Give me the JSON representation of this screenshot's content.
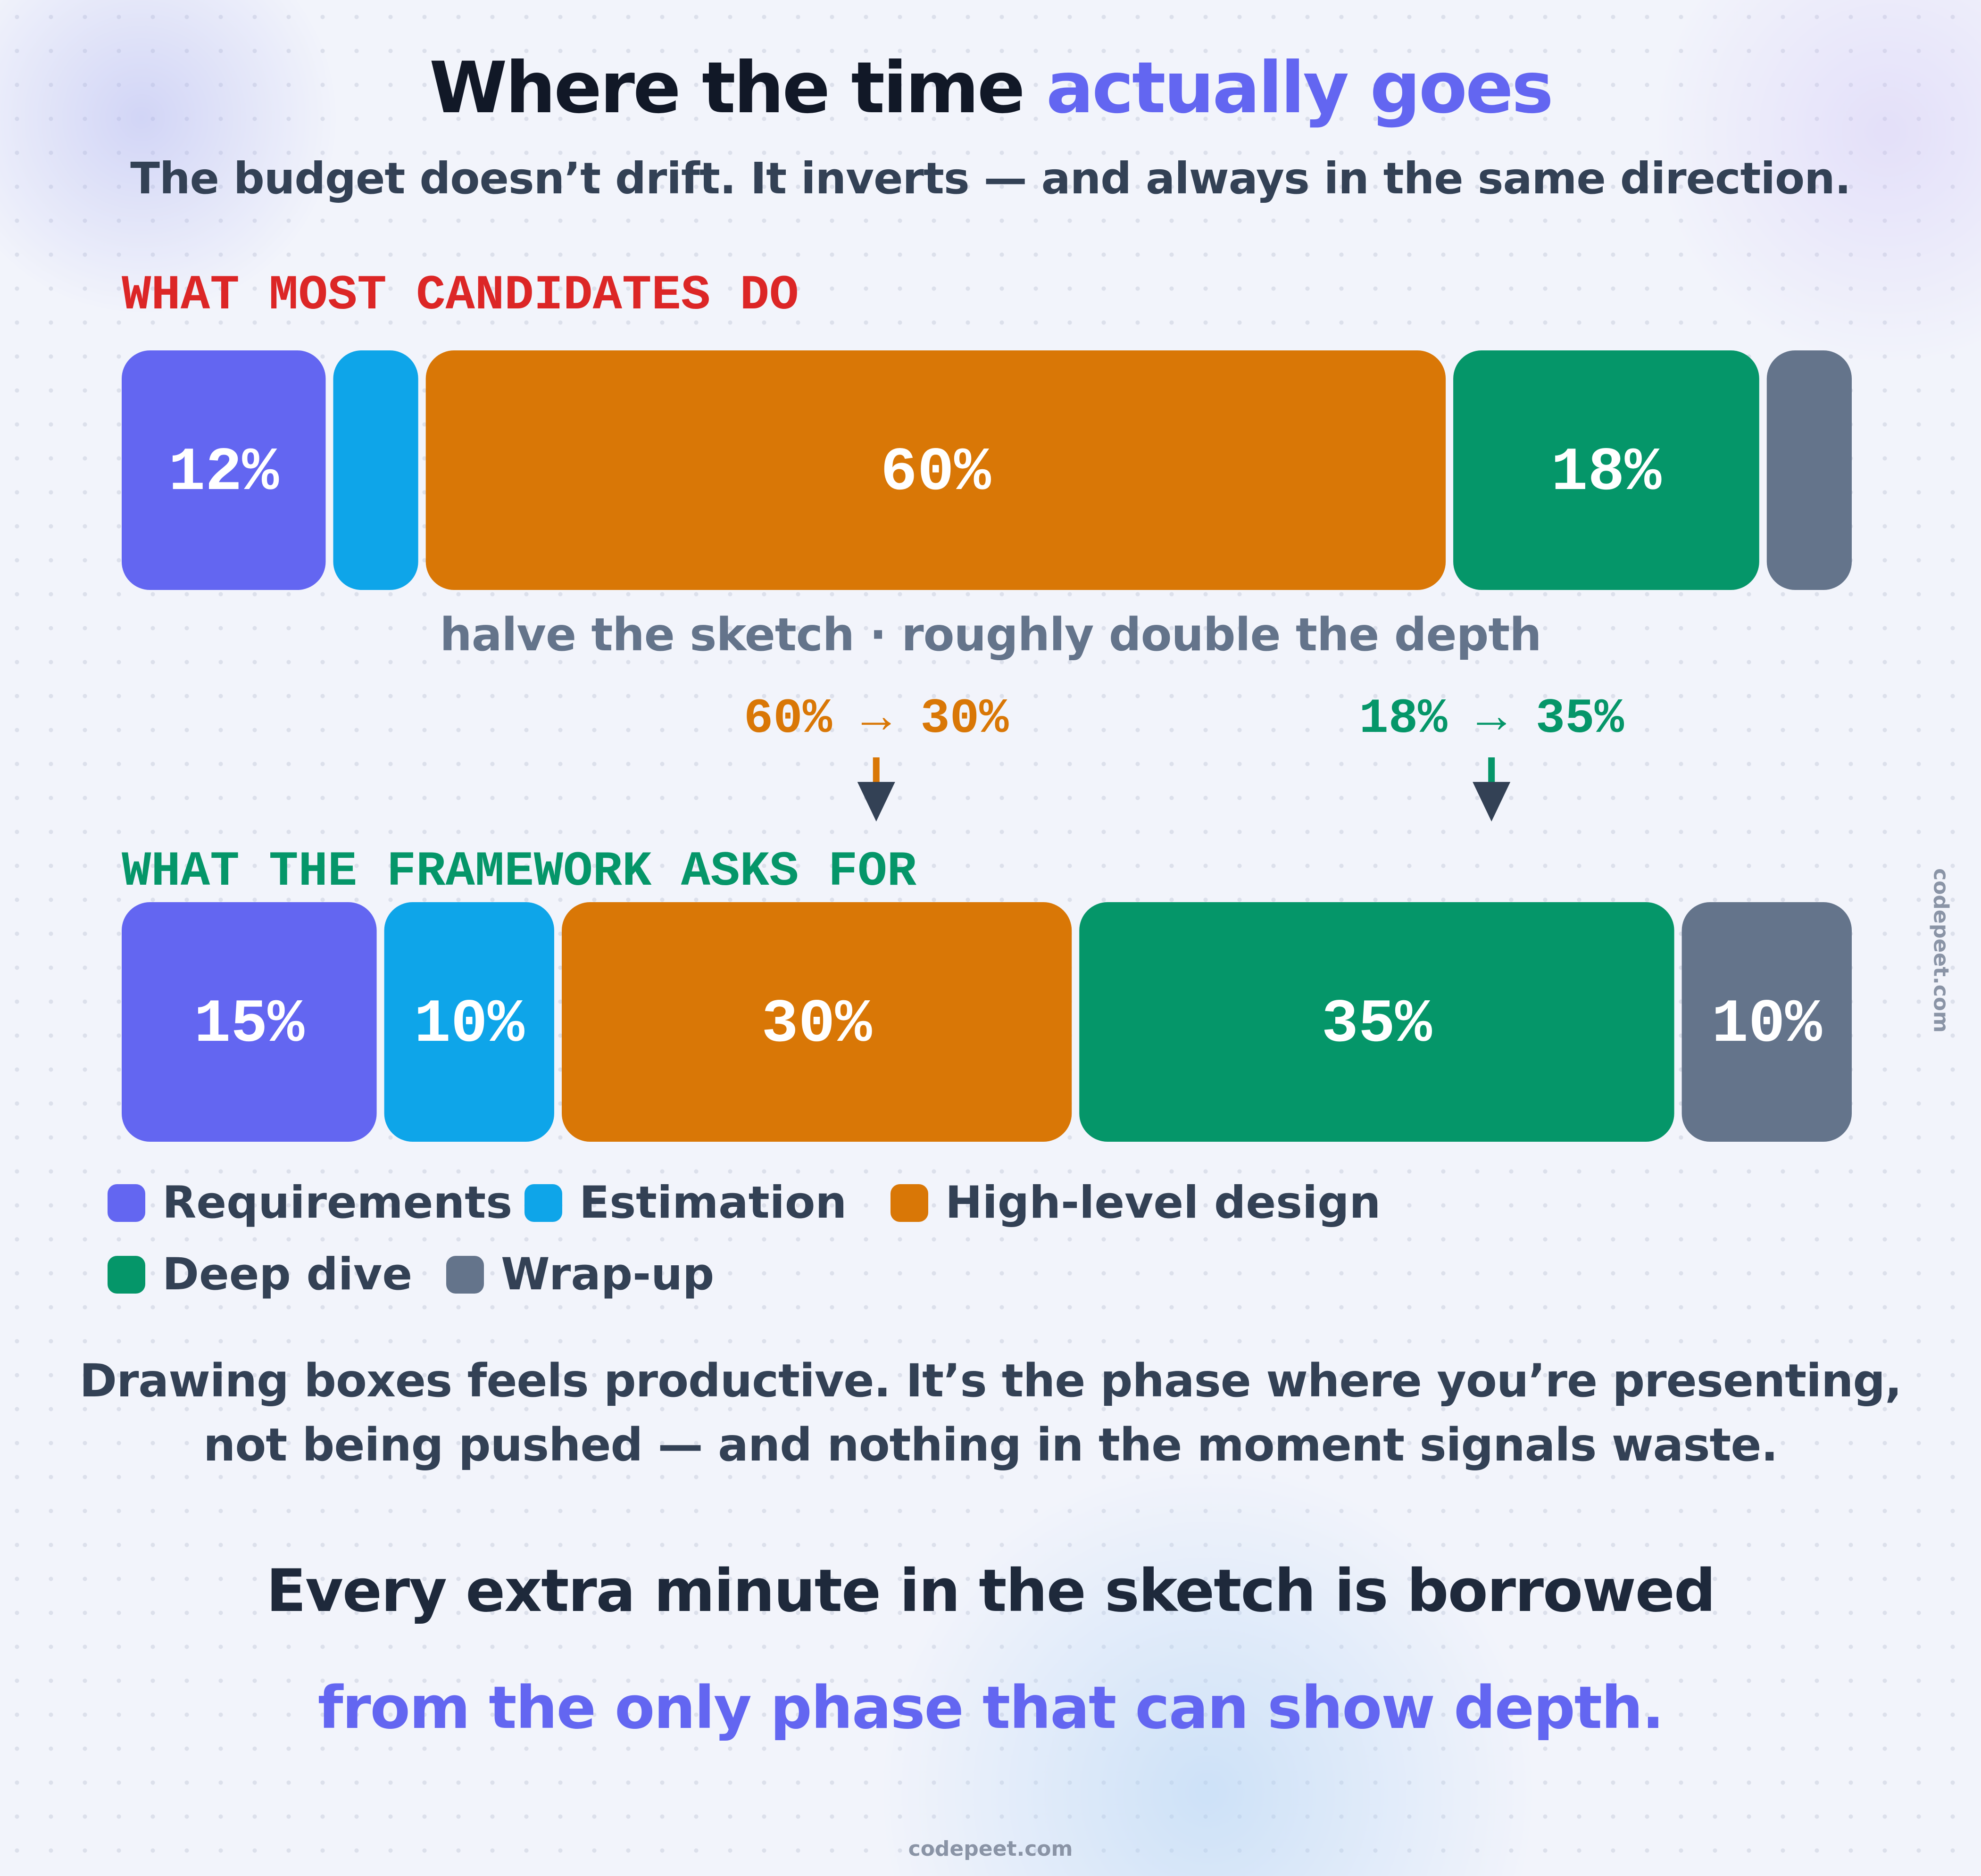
{
  "title": {
    "main": "Where the time",
    "accent": "actually goes"
  },
  "subtitle": "The budget doesn’t drift. It inverts — and always in the same direction.",
  "hint": "halve the sketch · roughly double the depth",
  "body_text": [
    "Drawing boxes feels productive. It’s the phase where you’re presenting,",
    "not being pushed — and nothing in the moment signals waste."
  ],
  "takeaway": [
    "Every extra minute in the sketch is borrowed",
    "from the only phase that can show depth."
  ],
  "footer": "codepeet.com",
  "side_watermark": "codepeet.com",
  "colors": {
    "requirements": "#6366f1",
    "estimation": "#0ea5e9",
    "high_level_design": "#d97706",
    "deep_dive": "#059669",
    "wrap_up": "#64748b",
    "current_label": "#dc2626",
    "target_label": "#059669",
    "arrow": "#334155"
  },
  "chart_data": {
    "type": "bar",
    "orientation": "horizontal-stacked",
    "categories": [
      "Requirements",
      "Estimation",
      "High-level design",
      "Deep dive",
      "Wrap-up"
    ],
    "series": [
      {
        "name": "WHAT MOST CANDIDATES DO",
        "values": [
          12,
          5,
          60,
          18,
          5
        ],
        "labels": [
          "12%",
          "",
          "60%",
          "18%",
          ""
        ]
      },
      {
        "name": "WHAT THE FRAMEWORK ASKS FOR",
        "values": [
          15,
          10,
          30,
          35,
          10
        ],
        "labels": [
          "15%",
          "10%",
          "30%",
          "35%",
          "10%"
        ]
      }
    ],
    "annotations": [
      {
        "text": "60% → 30%",
        "category": "High-level design",
        "from": 60,
        "to": 30
      },
      {
        "text": "18% → 35%",
        "category": "Deep dive",
        "from": 18,
        "to": 35
      }
    ],
    "legend": {
      "placement": "bottom-left",
      "entries": [
        "Requirements",
        "Estimation",
        "High-level design",
        "Deep dive",
        "Wrap-up"
      ]
    },
    "xlim": [
      0,
      100
    ],
    "grid": false
  }
}
